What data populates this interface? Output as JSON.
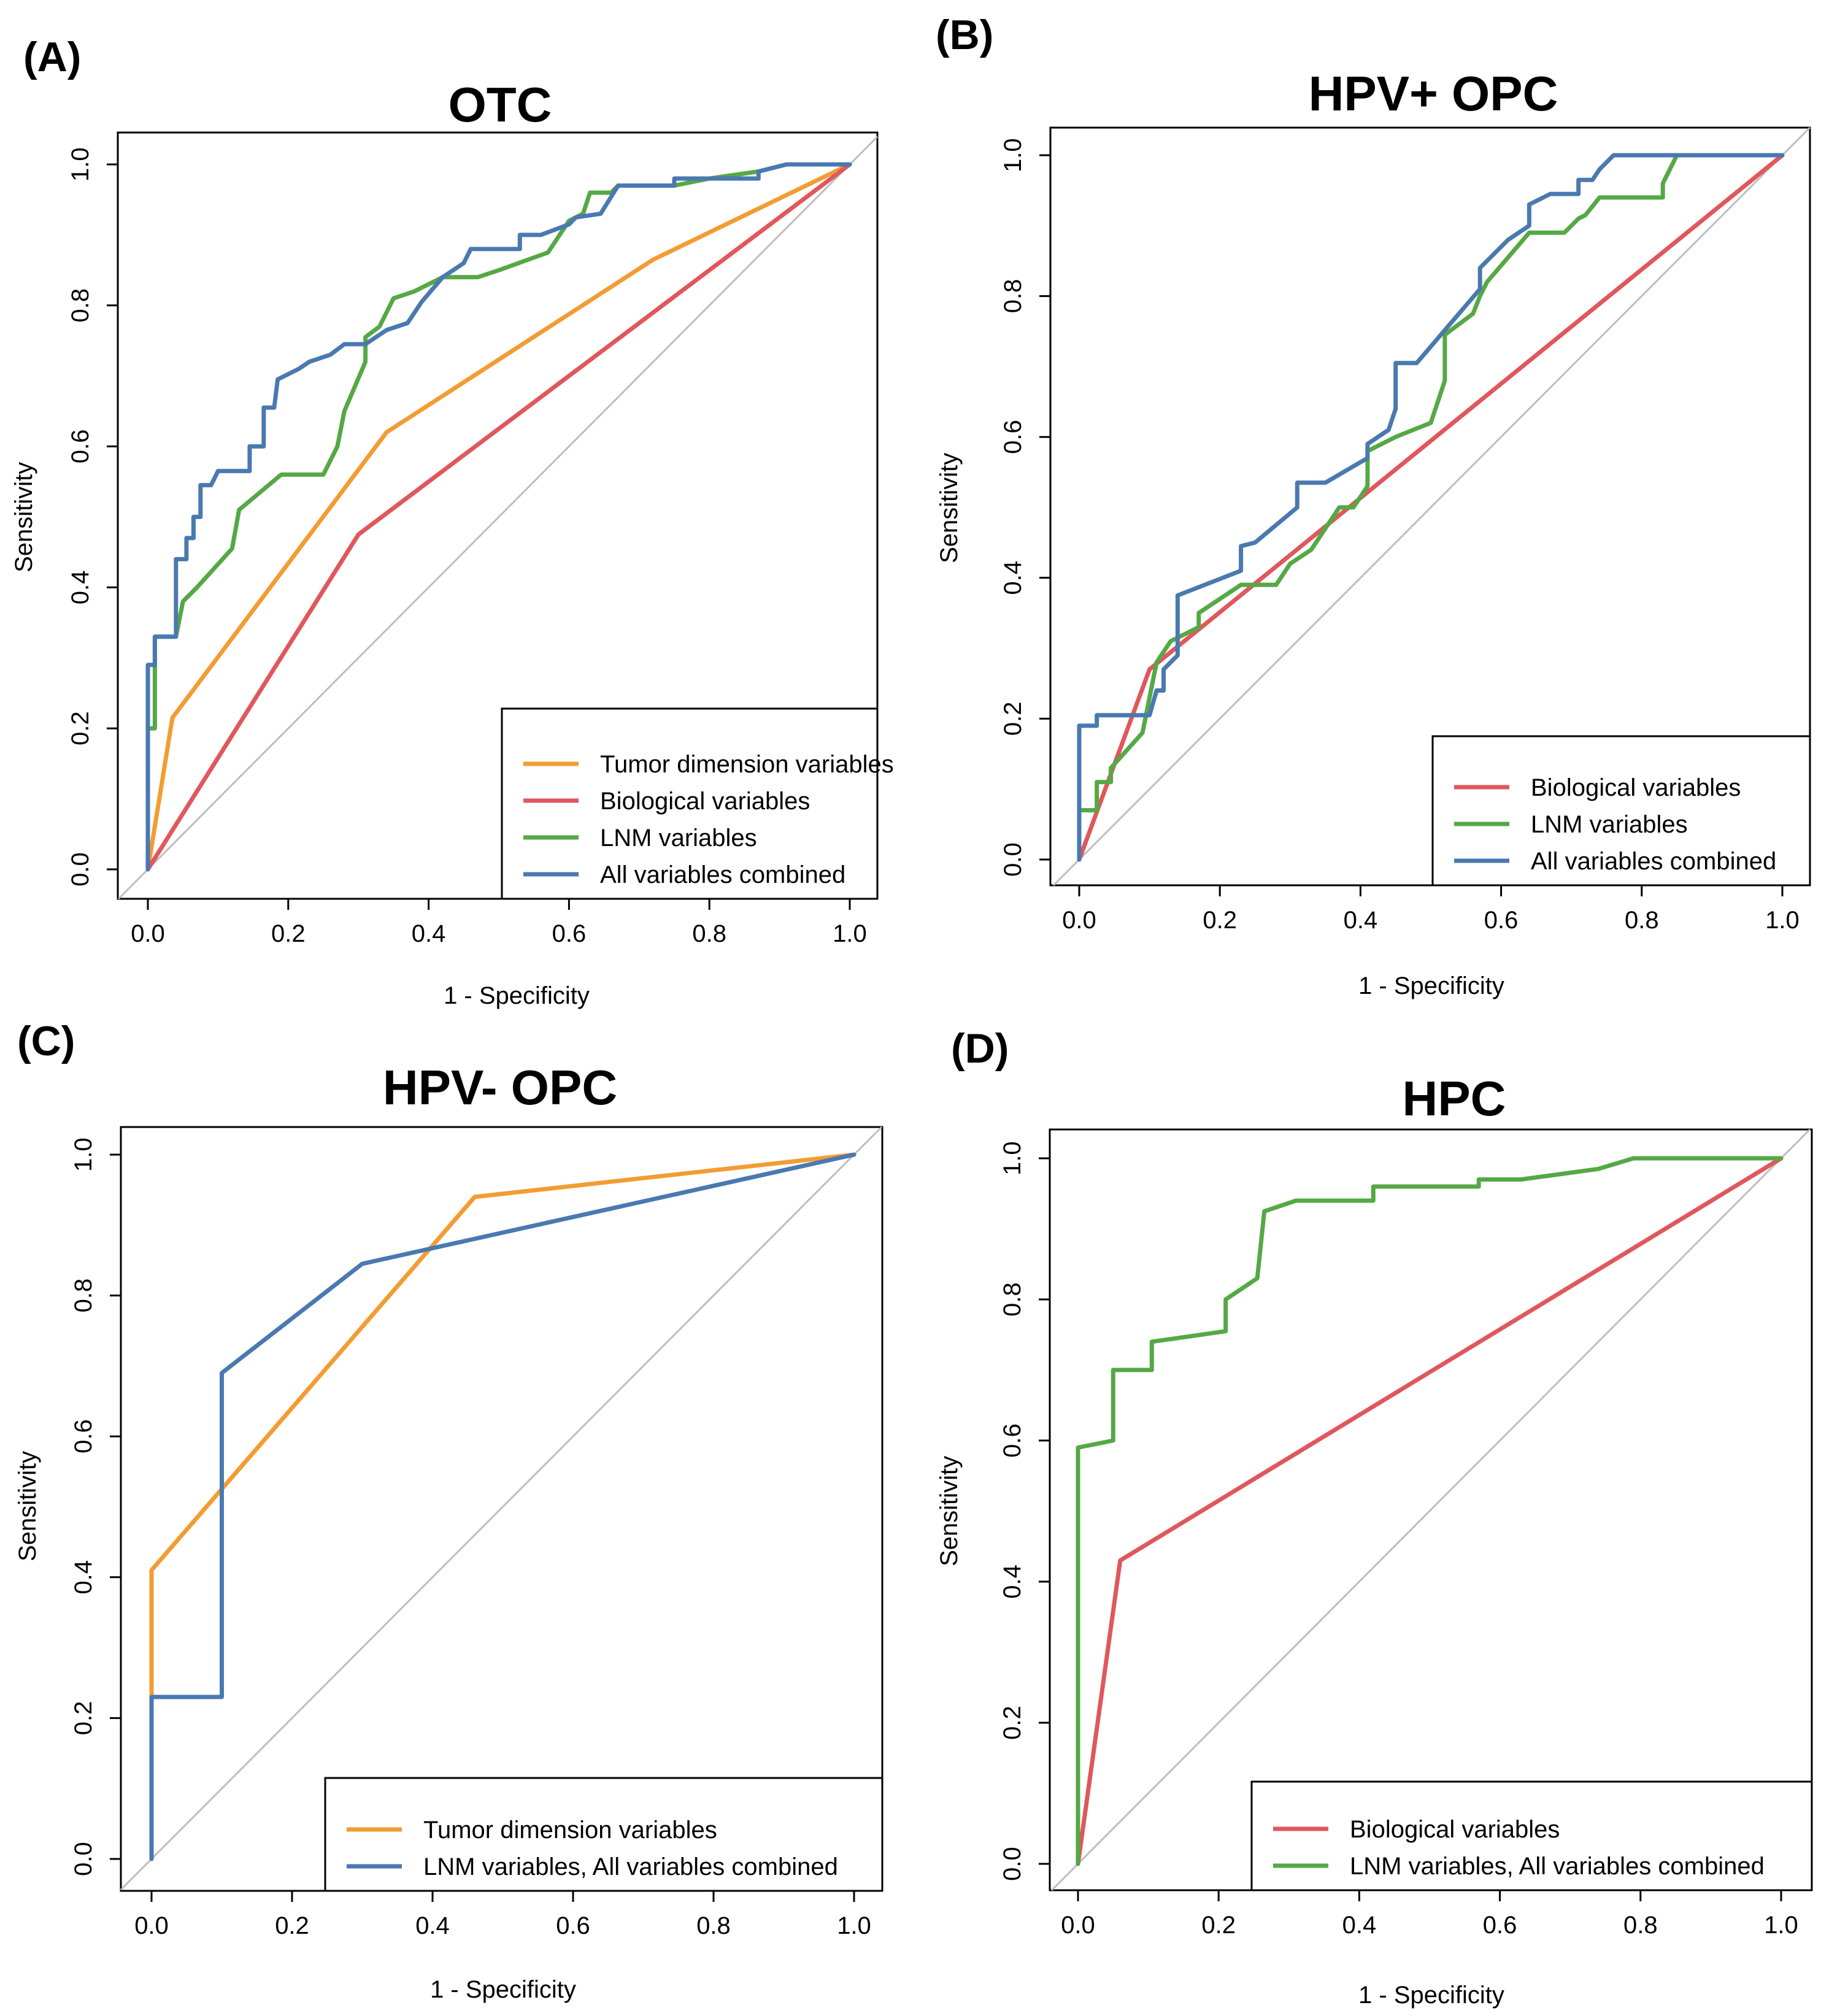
{
  "colors": {
    "orange": "#F39C33",
    "red": "#E0575C",
    "green": "#55A845",
    "blue": "#4A79B0",
    "diagonal": "#BEBEBE"
  },
  "chart_data": [
    {
      "type": "line",
      "panel_label": "(A)",
      "title": "OTC",
      "xlabel": "1 - Specificity",
      "ylabel": "Sensitivity",
      "xlim": [
        0,
        1
      ],
      "ylim": [
        0,
        1
      ],
      "xticks": [
        "0.0",
        "0.2",
        "0.4",
        "0.6",
        "0.8",
        "1.0"
      ],
      "yticks": [
        "0.0",
        "0.2",
        "0.4",
        "0.6",
        "0.8",
        "1.0"
      ],
      "legend_position": "bottom-right",
      "series": [
        {
          "name": "Tumor dimension variables",
          "color": "orange",
          "points": [
            [
              0,
              0
            ],
            [
              0.035,
              0.215
            ],
            [
              0.34,
              0.62
            ],
            [
              0.72,
              0.865
            ],
            [
              1,
              1
            ]
          ]
        },
        {
          "name": "Biological variables",
          "color": "red",
          "points": [
            [
              0,
              0
            ],
            [
              0.3,
              0.475
            ],
            [
              1,
              1
            ]
          ]
        },
        {
          "name": "LNM variables",
          "color": "green",
          "points": [
            [
              0,
              0
            ],
            [
              0,
              0.2
            ],
            [
              0.01,
              0.2
            ],
            [
              0.01,
              0.33
            ],
            [
              0.04,
              0.33
            ],
            [
              0.05,
              0.38
            ],
            [
              0.07,
              0.4
            ],
            [
              0.12,
              0.455
            ],
            [
              0.13,
              0.51
            ],
            [
              0.19,
              0.56
            ],
            [
              0.25,
              0.56
            ],
            [
              0.27,
              0.6
            ],
            [
              0.28,
              0.65
            ],
            [
              0.31,
              0.72
            ],
            [
              0.31,
              0.755
            ],
            [
              0.33,
              0.77
            ],
            [
              0.35,
              0.81
            ],
            [
              0.38,
              0.82
            ],
            [
              0.42,
              0.84
            ],
            [
              0.47,
              0.84
            ],
            [
              0.5,
              0.85
            ],
            [
              0.57,
              0.875
            ],
            [
              0.6,
              0.92
            ],
            [
              0.62,
              0.93
            ],
            [
              0.63,
              0.96
            ],
            [
              0.66,
              0.96
            ],
            [
              0.67,
              0.97
            ],
            [
              0.75,
              0.97
            ],
            [
              0.8,
              0.98
            ],
            [
              0.87,
              0.99
            ],
            [
              0.91,
              1.0
            ],
            [
              1,
              1
            ]
          ]
        },
        {
          "name": "All variables combined",
          "color": "blue",
          "points": [
            [
              0,
              0
            ],
            [
              0,
              0.29
            ],
            [
              0.01,
              0.29
            ],
            [
              0.01,
              0.33
            ],
            [
              0.04,
              0.33
            ],
            [
              0.04,
              0.44
            ],
            [
              0.055,
              0.44
            ],
            [
              0.055,
              0.47
            ],
            [
              0.065,
              0.47
            ],
            [
              0.065,
              0.5
            ],
            [
              0.075,
              0.5
            ],
            [
              0.075,
              0.545
            ],
            [
              0.09,
              0.545
            ],
            [
              0.1,
              0.565
            ],
            [
              0.145,
              0.565
            ],
            [
              0.145,
              0.6
            ],
            [
              0.165,
              0.6
            ],
            [
              0.165,
              0.655
            ],
            [
              0.18,
              0.655
            ],
            [
              0.185,
              0.695
            ],
            [
              0.215,
              0.71
            ],
            [
              0.23,
              0.72
            ],
            [
              0.26,
              0.73
            ],
            [
              0.28,
              0.745
            ],
            [
              0.31,
              0.745
            ],
            [
              0.34,
              0.765
            ],
            [
              0.37,
              0.775
            ],
            [
              0.39,
              0.805
            ],
            [
              0.42,
              0.84
            ],
            [
              0.45,
              0.86
            ],
            [
              0.46,
              0.88
            ],
            [
              0.53,
              0.88
            ],
            [
              0.53,
              0.9
            ],
            [
              0.56,
              0.9
            ],
            [
              0.6,
              0.915
            ],
            [
              0.61,
              0.925
            ],
            [
              0.645,
              0.93
            ],
            [
              0.67,
              0.97
            ],
            [
              0.75,
              0.97
            ],
            [
              0.75,
              0.98
            ],
            [
              0.87,
              0.98
            ],
            [
              0.87,
              0.99
            ],
            [
              0.91,
              1.0
            ],
            [
              1,
              1
            ]
          ]
        }
      ]
    },
    {
      "type": "line",
      "panel_label": "(B)",
      "title": "HPV+ OPC",
      "xlabel": "1 - Specificity",
      "ylabel": "Sensitivity",
      "xlim": [
        0,
        1
      ],
      "ylim": [
        0,
        1
      ],
      "xticks": [
        "0.0",
        "0.2",
        "0.4",
        "0.6",
        "0.8",
        "1.0"
      ],
      "yticks": [
        "0.0",
        "0.2",
        "0.4",
        "0.6",
        "0.8",
        "1.0"
      ],
      "legend_position": "bottom-right",
      "series": [
        {
          "name": "Biological variables",
          "color": "red",
          "points": [
            [
              0,
              0
            ],
            [
              0.1,
              0.27
            ],
            [
              1,
              1
            ]
          ]
        },
        {
          "name": "LNM variables",
          "color": "green",
          "points": [
            [
              0,
              0
            ],
            [
              0,
              0.07
            ],
            [
              0.025,
              0.07
            ],
            [
              0.025,
              0.11
            ],
            [
              0.045,
              0.11
            ],
            [
              0.045,
              0.13
            ],
            [
              0.09,
              0.18
            ],
            [
              0.11,
              0.28
            ],
            [
              0.13,
              0.31
            ],
            [
              0.17,
              0.33
            ],
            [
              0.17,
              0.35
            ],
            [
              0.23,
              0.39
            ],
            [
              0.28,
              0.39
            ],
            [
              0.3,
              0.42
            ],
            [
              0.33,
              0.44
            ],
            [
              0.37,
              0.5
            ],
            [
              0.39,
              0.5
            ],
            [
              0.41,
              0.53
            ],
            [
              0.41,
              0.58
            ],
            [
              0.45,
              0.6
            ],
            [
              0.5,
              0.62
            ],
            [
              0.52,
              0.68
            ],
            [
              0.52,
              0.745
            ],
            [
              0.56,
              0.775
            ],
            [
              0.57,
              0.8
            ],
            [
              0.58,
              0.82
            ],
            [
              0.64,
              0.89
            ],
            [
              0.69,
              0.89
            ],
            [
              0.71,
              0.91
            ],
            [
              0.72,
              0.915
            ],
            [
              0.74,
              0.94
            ],
            [
              0.83,
              0.94
            ],
            [
              0.83,
              0.96
            ],
            [
              0.85,
              1.0
            ],
            [
              1,
              1
            ]
          ]
        },
        {
          "name": "All variables combined",
          "color": "blue",
          "points": [
            [
              0,
              0
            ],
            [
              0,
              0.19
            ],
            [
              0.025,
              0.19
            ],
            [
              0.025,
              0.205
            ],
            [
              0.1,
              0.205
            ],
            [
              0.11,
              0.24
            ],
            [
              0.12,
              0.24
            ],
            [
              0.12,
              0.27
            ],
            [
              0.14,
              0.29
            ],
            [
              0.14,
              0.375
            ],
            [
              0.23,
              0.41
            ],
            [
              0.23,
              0.445
            ],
            [
              0.25,
              0.45
            ],
            [
              0.31,
              0.5
            ],
            [
              0.31,
              0.535
            ],
            [
              0.35,
              0.535
            ],
            [
              0.41,
              0.57
            ],
            [
              0.41,
              0.59
            ],
            [
              0.44,
              0.61
            ],
            [
              0.45,
              0.64
            ],
            [
              0.45,
              0.705
            ],
            [
              0.48,
              0.705
            ],
            [
              0.57,
              0.81
            ],
            [
              0.57,
              0.84
            ],
            [
              0.61,
              0.88
            ],
            [
              0.64,
              0.9
            ],
            [
              0.64,
              0.93
            ],
            [
              0.67,
              0.945
            ],
            [
              0.71,
              0.945
            ],
            [
              0.71,
              0.965
            ],
            [
              0.73,
              0.965
            ],
            [
              0.74,
              0.98
            ],
            [
              0.76,
              1.0
            ],
            [
              1,
              1
            ]
          ]
        }
      ]
    },
    {
      "type": "line",
      "panel_label": "(C)",
      "title": "HPV- OPC",
      "xlabel": "1 - Specificity",
      "ylabel": "Sensitivity",
      "xlim": [
        0,
        1
      ],
      "ylim": [
        0,
        1
      ],
      "xticks": [
        "0.0",
        "0.2",
        "0.4",
        "0.6",
        "0.8",
        "1.0"
      ],
      "yticks": [
        "0.0",
        "0.2",
        "0.4",
        "0.6",
        "0.8",
        "1.0"
      ],
      "legend_position": "bottom-right",
      "series": [
        {
          "name": "Tumor dimension variables",
          "color": "orange",
          "points": [
            [
              0,
              0.23
            ],
            [
              0,
              0.41
            ],
            [
              0.46,
              0.94
            ],
            [
              1,
              1
            ]
          ]
        },
        {
          "name": "LNM variables, All variables combined",
          "color": "blue",
          "points": [
            [
              0,
              0
            ],
            [
              0,
              0.23
            ],
            [
              0.1,
              0.23
            ],
            [
              0.1,
              0.69
            ],
            [
              0.3,
              0.845
            ],
            [
              1,
              1
            ]
          ]
        }
      ]
    },
    {
      "type": "line",
      "panel_label": "(D)",
      "title": "HPC",
      "xlabel": "1 - Specificity",
      "ylabel": "Sensitivity",
      "xlim": [
        0,
        1
      ],
      "ylim": [
        0,
        1
      ],
      "xticks": [
        "0.0",
        "0.2",
        "0.4",
        "0.6",
        "0.8",
        "1.0"
      ],
      "yticks": [
        "0.0",
        "0.2",
        "0.4",
        "0.6",
        "0.8",
        "1.0"
      ],
      "legend_position": "bottom-right",
      "series": [
        {
          "name": "Biological variables",
          "color": "red",
          "points": [
            [
              0,
              0
            ],
            [
              0.06,
              0.43
            ],
            [
              1,
              1
            ]
          ]
        },
        {
          "name": "LNM variables, All variables combined",
          "color": "green",
          "points": [
            [
              0,
              0
            ],
            [
              0,
              0.59
            ],
            [
              0.05,
              0.6
            ],
            [
              0.05,
              0.7
            ],
            [
              0.105,
              0.7
            ],
            [
              0.105,
              0.74
            ],
            [
              0.21,
              0.755
            ],
            [
              0.21,
              0.8
            ],
            [
              0.255,
              0.83
            ],
            [
              0.265,
              0.925
            ],
            [
              0.31,
              0.94
            ],
            [
              0.42,
              0.94
            ],
            [
              0.42,
              0.96
            ],
            [
              0.57,
              0.96
            ],
            [
              0.57,
              0.97
            ],
            [
              0.63,
              0.97
            ],
            [
              0.74,
              0.985
            ],
            [
              0.79,
              1.0
            ],
            [
              1,
              1
            ]
          ]
        }
      ]
    }
  ]
}
